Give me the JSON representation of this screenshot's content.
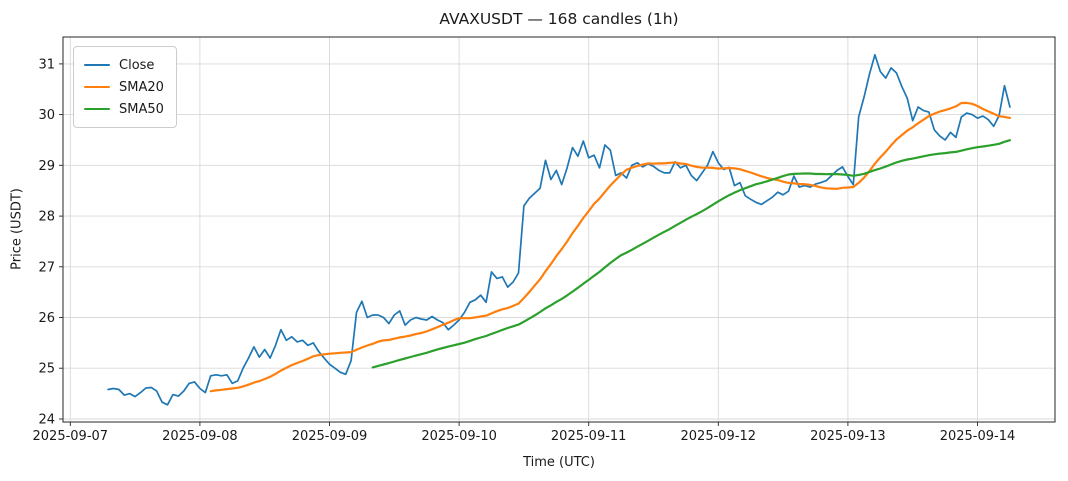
{
  "chart_data": {
    "type": "line",
    "title": "AVAXUSDT — 168 candles (1h)",
    "symbol": "AVAXUSDT",
    "interval": "1h",
    "candle_count": 168,
    "xlabel": "Time (UTC)",
    "ylabel": "Price (USDT)",
    "grid": true,
    "legend_position": "upper-left",
    "xlim": [
      -8.35,
      175.35
    ],
    "ylim": [
      23.94,
      31.53
    ],
    "y_ticks": [
      24,
      25,
      26,
      27,
      28,
      29,
      30,
      31
    ],
    "x_ticks": [
      {
        "index": -7,
        "label": "2025-09-07"
      },
      {
        "index": 17,
        "label": "2025-09-08"
      },
      {
        "index": 41,
        "label": "2025-09-09"
      },
      {
        "index": 65,
        "label": "2025-09-10"
      },
      {
        "index": 89,
        "label": "2025-09-11"
      },
      {
        "index": 113,
        "label": "2025-09-12"
      },
      {
        "index": 137,
        "label": "2025-09-13"
      },
      {
        "index": 161,
        "label": "2025-09-14"
      }
    ],
    "series": [
      {
        "name": "Close",
        "color": "#1f77b4",
        "width": 1.7,
        "values": [
          24.58,
          24.6,
          24.58,
          24.47,
          24.5,
          24.44,
          24.52,
          24.61,
          24.62,
          24.55,
          24.33,
          24.28,
          24.48,
          24.45,
          24.55,
          24.7,
          24.73,
          24.6,
          24.52,
          24.85,
          24.87,
          24.85,
          24.87,
          24.7,
          24.75,
          25.0,
          25.2,
          25.42,
          25.22,
          25.37,
          25.2,
          25.45,
          25.76,
          25.55,
          25.62,
          25.52,
          25.55,
          25.45,
          25.5,
          25.33,
          25.2,
          25.08,
          25.0,
          24.92,
          24.88,
          25.15,
          26.1,
          26.32,
          26.0,
          26.05,
          26.05,
          26.0,
          25.88,
          26.05,
          26.13,
          25.85,
          25.95,
          26.0,
          25.97,
          25.95,
          26.02,
          25.95,
          25.9,
          25.76,
          25.85,
          25.95,
          26.1,
          26.3,
          26.35,
          26.44,
          26.3,
          26.9,
          26.77,
          26.8,
          26.6,
          26.7,
          26.88,
          28.2,
          28.35,
          28.45,
          28.55,
          29.1,
          28.72,
          28.9,
          28.62,
          28.95,
          29.35,
          29.18,
          29.48,
          29.15,
          29.2,
          28.95,
          29.4,
          29.3,
          28.8,
          28.85,
          28.75,
          29.0,
          29.05,
          28.97,
          29.03,
          28.98,
          28.9,
          28.85,
          28.85,
          29.07,
          28.95,
          29.0,
          28.8,
          28.7,
          28.85,
          29.0,
          29.27,
          29.05,
          28.92,
          28.96,
          28.6,
          28.66,
          28.4,
          28.33,
          28.27,
          28.23,
          28.3,
          28.37,
          28.47,
          28.42,
          28.49,
          28.79,
          28.57,
          28.6,
          28.57,
          28.63,
          28.66,
          28.7,
          28.8,
          28.9,
          28.97,
          28.78,
          28.62,
          29.96,
          30.35,
          30.8,
          31.18,
          30.85,
          30.72,
          30.92,
          30.82,
          30.55,
          30.32,
          29.88,
          30.15,
          30.08,
          30.05,
          29.7,
          29.58,
          29.5,
          29.65,
          29.55,
          29.95,
          30.03,
          30.0,
          29.93,
          29.97,
          29.9,
          29.77,
          29.98,
          30.57,
          30.15
        ]
      },
      {
        "name": "SMA20",
        "color": "#ff7f0e",
        "width": 2.2,
        "sma_window": 20,
        "derived_from": "Close"
      },
      {
        "name": "SMA50",
        "color": "#2ca02c",
        "width": 2.2,
        "sma_window": 50,
        "derived_from": "Close"
      }
    ]
  }
}
